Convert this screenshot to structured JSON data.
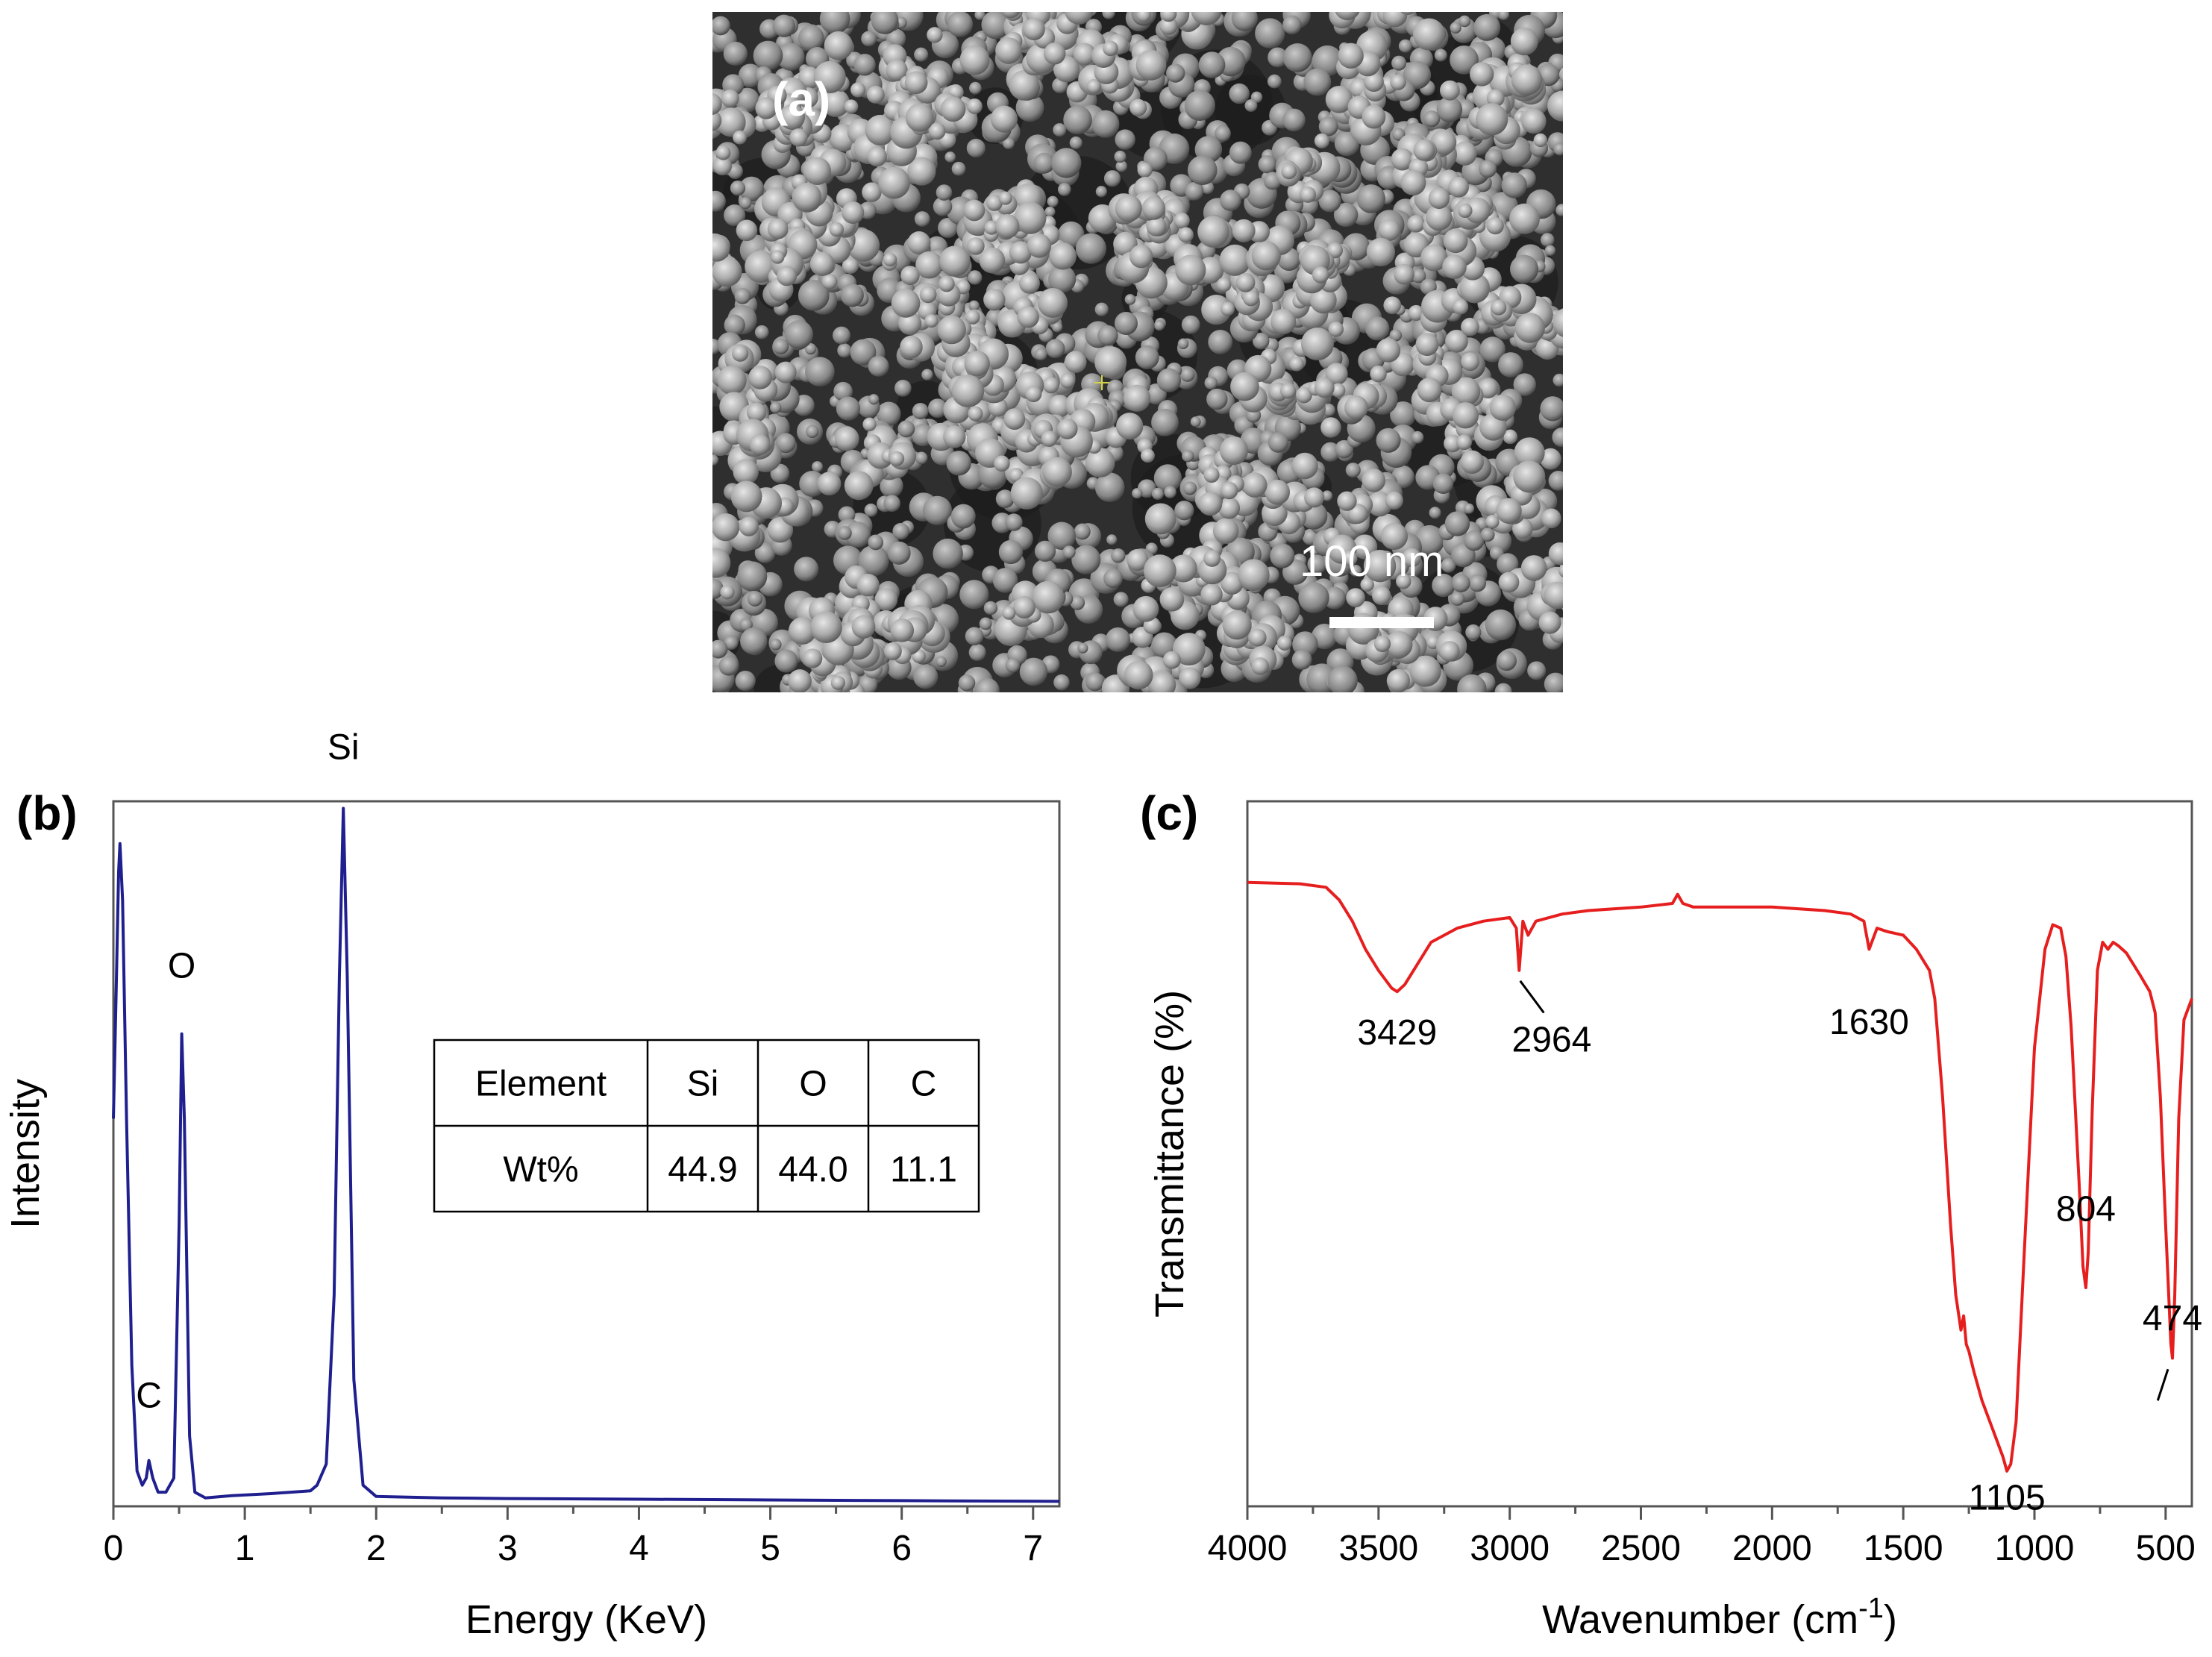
{
  "panel_a": {
    "label": "(a)",
    "scale_bar_text": "100 nm"
  },
  "chart_data": [
    {
      "type": "line",
      "panel_label": "(b)",
      "title": "",
      "xlabel": "Energy (KeV)",
      "ylabel": "Intensity",
      "xlim": [
        0,
        7.2
      ],
      "ylim": [
        0,
        1
      ],
      "x_ticks": [
        0,
        1,
        2,
        3,
        4,
        5,
        6,
        7
      ],
      "y_ticks_shown": false,
      "grid": false,
      "series_color": "#1f1f8f",
      "series": [
        {
          "name": "",
          "x": [
            0.0,
            0.02,
            0.04,
            0.05,
            0.07,
            0.1,
            0.14,
            0.18,
            0.22,
            0.25,
            0.27,
            0.3,
            0.34,
            0.4,
            0.46,
            0.5,
            0.52,
            0.54,
            0.58,
            0.62,
            0.7,
            0.9,
            1.2,
            1.5,
            1.55,
            1.62,
            1.68,
            1.72,
            1.75,
            1.78,
            1.83,
            1.9,
            2.0,
            2.5,
            3.0,
            4.0,
            5.0,
            6.0,
            7.2
          ],
          "y": [
            0.55,
            0.72,
            0.9,
            0.94,
            0.86,
            0.55,
            0.2,
            0.05,
            0.03,
            0.04,
            0.065,
            0.04,
            0.02,
            0.02,
            0.04,
            0.4,
            0.67,
            0.55,
            0.1,
            0.02,
            0.012,
            0.015,
            0.018,
            0.022,
            0.03,
            0.06,
            0.3,
            0.75,
            0.99,
            0.75,
            0.18,
            0.03,
            0.014,
            0.012,
            0.011,
            0.01,
            0.009,
            0.008,
            0.007
          ]
        }
      ],
      "annotations": [
        {
          "text": "Si",
          "x": 1.75,
          "y": 1.06
        },
        {
          "text": "O",
          "x": 0.52,
          "y": 0.75
        },
        {
          "text": "C",
          "x": 0.27,
          "y": 0.14
        }
      ],
      "inset_table": {
        "header": [
          "Element",
          "Si",
          "O",
          "C"
        ],
        "rows": [
          [
            "Wt%",
            "44.9",
            "44.0",
            "11.1"
          ]
        ]
      }
    },
    {
      "type": "line",
      "panel_label": "(c)",
      "title": "",
      "xlabel": "Wavenumber (cm",
      "xlabel_superscript": "-1",
      "xlabel_suffix": ")",
      "ylabel": "Transmittance (%)",
      "xlim": [
        4000,
        400
      ],
      "ylim": [
        0,
        1
      ],
      "x_ticks": [
        4000,
        3500,
        3000,
        2500,
        2000,
        1500,
        1000,
        500
      ],
      "y_ticks_shown": false,
      "grid": false,
      "series_color": "#e61e1e",
      "series": [
        {
          "name": "",
          "x": [
            4000,
            3800,
            3700,
            3650,
            3600,
            3550,
            3500,
            3450,
            3429,
            3400,
            3350,
            3300,
            3200,
            3100,
            3000,
            2975,
            2964,
            2950,
            2930,
            2900,
            2800,
            2700,
            2500,
            2380,
            2360,
            2340,
            2300,
            2200,
            2000,
            1800,
            1700,
            1650,
            1630,
            1600,
            1560,
            1500,
            1450,
            1400,
            1380,
            1350,
            1320,
            1300,
            1280,
            1270,
            1260,
            1250,
            1230,
            1200,
            1150,
            1120,
            1105,
            1090,
            1070,
            1040,
            1000,
            960,
            930,
            900,
            880,
            860,
            830,
            815,
            804,
            795,
            780,
            760,
            740,
            720,
            700,
            680,
            650,
            600,
            560,
            540,
            520,
            500,
            480,
            474,
            465,
            450,
            430,
            400
          ],
          "y": [
            0.885,
            0.883,
            0.878,
            0.86,
            0.83,
            0.79,
            0.76,
            0.735,
            0.73,
            0.74,
            0.77,
            0.8,
            0.82,
            0.83,
            0.835,
            0.82,
            0.76,
            0.83,
            0.81,
            0.83,
            0.84,
            0.845,
            0.85,
            0.855,
            0.868,
            0.855,
            0.85,
            0.85,
            0.85,
            0.845,
            0.84,
            0.83,
            0.79,
            0.82,
            0.815,
            0.81,
            0.79,
            0.76,
            0.72,
            0.58,
            0.4,
            0.3,
            0.25,
            0.27,
            0.23,
            0.22,
            0.19,
            0.15,
            0.1,
            0.07,
            0.05,
            0.06,
            0.12,
            0.35,
            0.65,
            0.79,
            0.825,
            0.82,
            0.78,
            0.68,
            0.46,
            0.34,
            0.31,
            0.36,
            0.56,
            0.76,
            0.8,
            0.79,
            0.8,
            0.795,
            0.785,
            0.755,
            0.73,
            0.7,
            0.58,
            0.4,
            0.23,
            0.21,
            0.3,
            0.55,
            0.69,
            0.72
          ]
        }
      ],
      "annotations": [
        {
          "text": "3429",
          "x": 3429,
          "y": 0.655
        },
        {
          "text": "2964",
          "x": 2840,
          "y": 0.645
        },
        {
          "text": "1630",
          "x": 1630,
          "y": 0.67
        },
        {
          "text": "804",
          "x": 804,
          "y": 0.405
        },
        {
          "text": "474",
          "x": 474,
          "y": 0.25
        },
        {
          "text": "1105",
          "x": 1105,
          "y": -0.005
        }
      ]
    }
  ]
}
